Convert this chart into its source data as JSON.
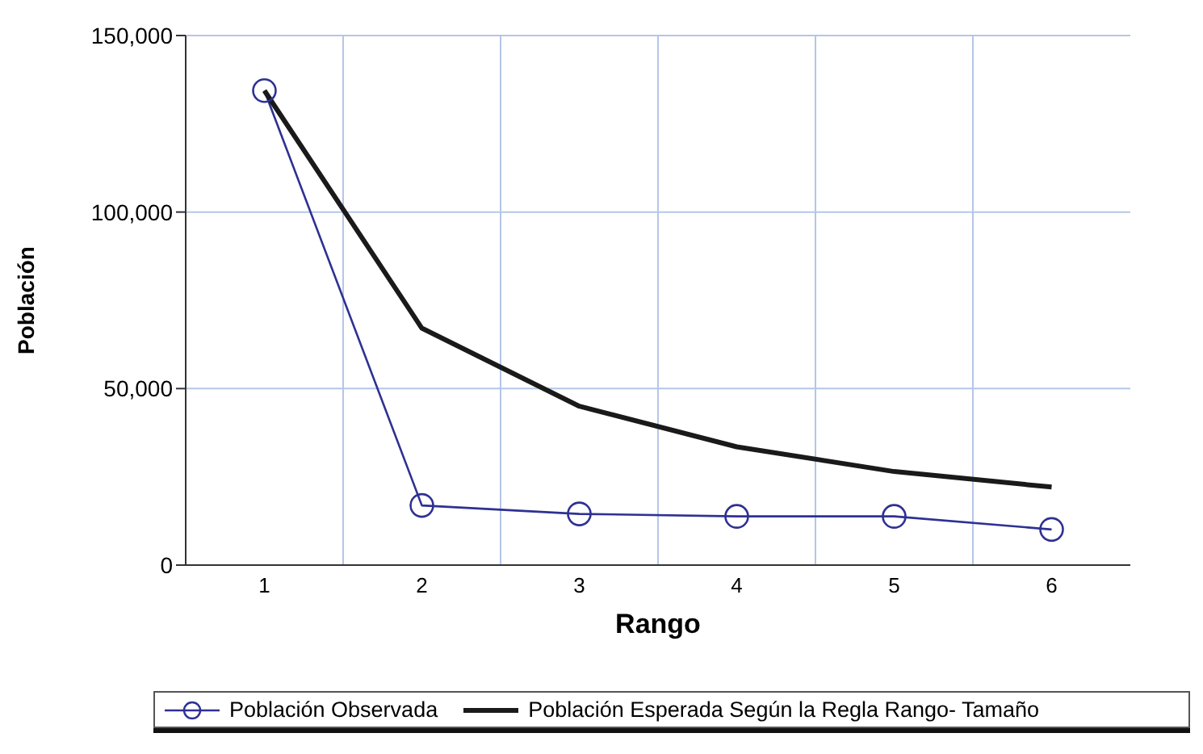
{
  "chart_data": {
    "type": "line",
    "xlabel": "Rango",
    "ylabel": "Población",
    "x": [
      1,
      2,
      3,
      4,
      5,
      6
    ],
    "xlim": [
      0.5,
      6.5
    ],
    "xticks": [
      1,
      2,
      3,
      4,
      5,
      6
    ],
    "ylim": [
      0,
      150000
    ],
    "yticks": [
      {
        "value": 0,
        "label": "0"
      },
      {
        "value": 50000,
        "label": "50,000"
      },
      {
        "value": 100000,
        "label": "100,000"
      },
      {
        "value": 150000,
        "label": "150,000"
      }
    ],
    "grid": true,
    "legend": "bottom",
    "series": [
      {
        "name": "Población Observada",
        "color": "#2e3192",
        "marker": "circle",
        "values": [
          134400,
          16900,
          14500,
          13800,
          13800,
          10100
        ]
      },
      {
        "name": "Población Esperada Según la Regla Rango- Tamaño",
        "color": "#1a1a1a",
        "marker": "none",
        "values": [
          134400,
          67100,
          45000,
          33500,
          26500,
          22100
        ]
      }
    ]
  }
}
